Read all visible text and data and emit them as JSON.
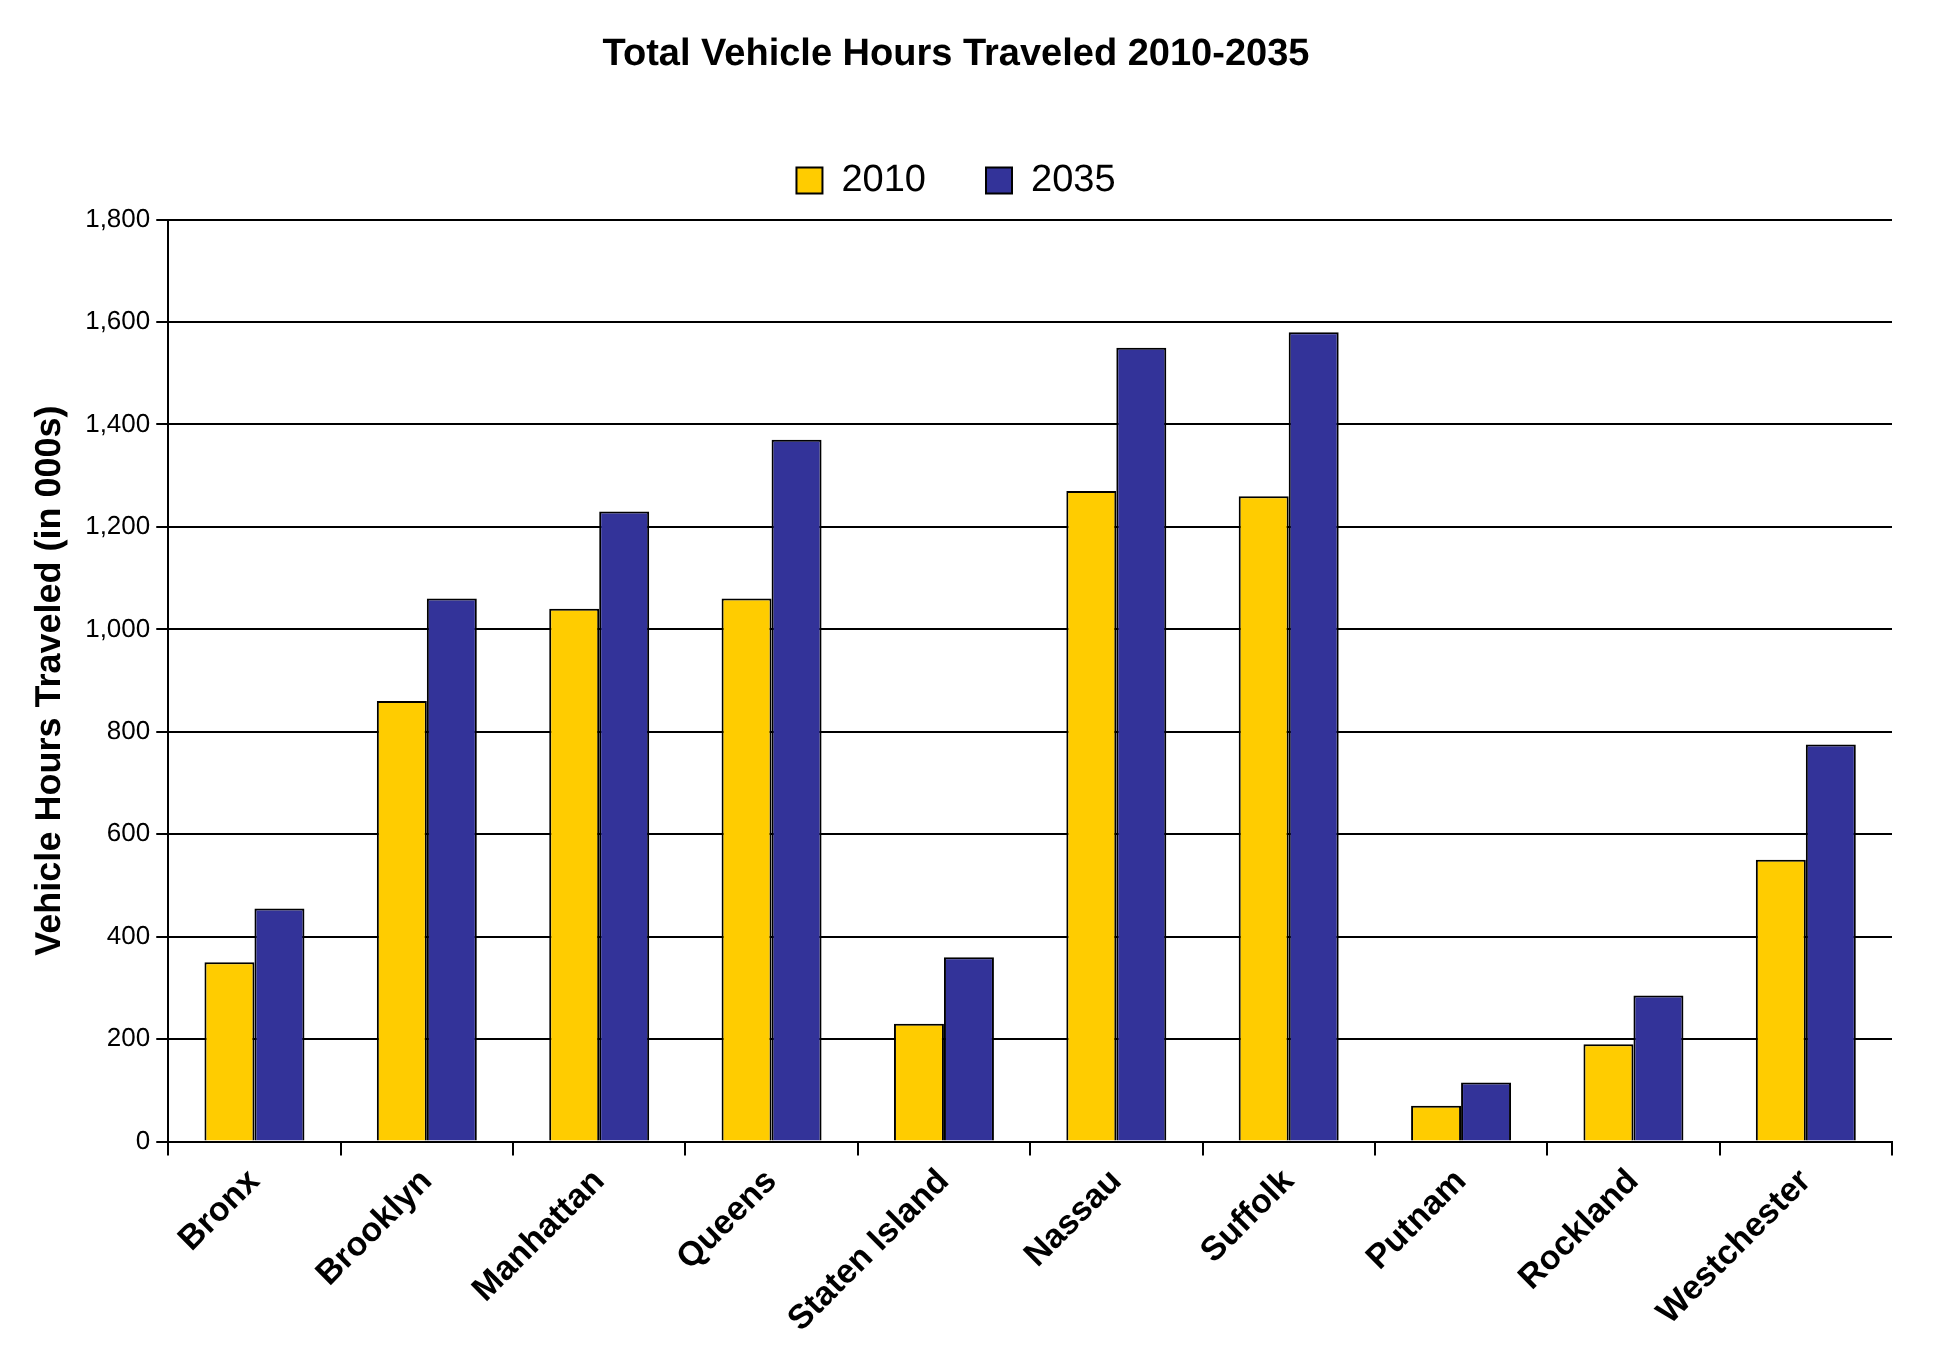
{
  "chart_data": {
    "type": "bar",
    "title": "Total Vehicle Hours Traveled 2010-2035",
    "ylabel": "Vehicle Hours Traveled (in 000s)",
    "categories": [
      "Bronx",
      "Brooklyn",
      "Manhattan",
      "Queens",
      "Staten Island",
      "Nassau",
      "Suffolk",
      "Putnam",
      "Rockland",
      "Westchester"
    ],
    "series": [
      {
        "name": "2010",
        "color": "#ffcc00",
        "values": [
          350,
          860,
          1040,
          1060,
          230,
          1270,
          1260,
          70,
          190,
          550
        ]
      },
      {
        "name": "2035",
        "color": "#333399",
        "values": [
          455,
          1060,
          1230,
          1370,
          360,
          1550,
          1580,
          115,
          285,
          775
        ]
      }
    ],
    "ylim": [
      0,
      1800
    ],
    "yticks": [
      {
        "value": 0,
        "label": "0"
      },
      {
        "value": 200,
        "label": "200"
      },
      {
        "value": 400,
        "label": "400"
      },
      {
        "value": 600,
        "label": "600"
      },
      {
        "value": 800,
        "label": "800"
      },
      {
        "value": 1000,
        "label": "1,000"
      },
      {
        "value": 1200,
        "label": "1,200"
      },
      {
        "value": 1400,
        "label": "1,400"
      },
      {
        "value": 1600,
        "label": "1,600"
      },
      {
        "value": 1800,
        "label": "1,800"
      }
    ],
    "grid": "y",
    "legend": "top"
  }
}
